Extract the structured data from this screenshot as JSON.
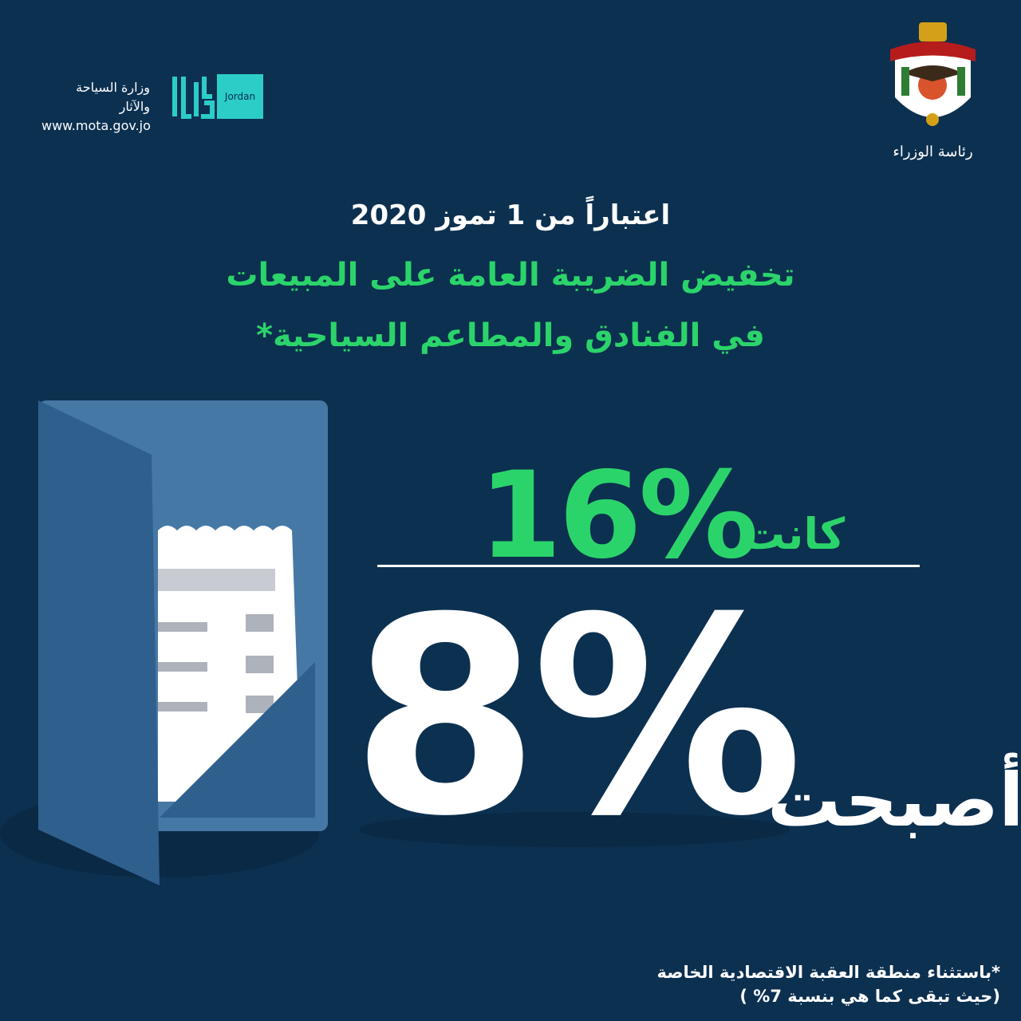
{
  "header": {
    "ministry_name": "وزارة السياحة والآثار",
    "ministry_url": "www.mota.gov.jo",
    "brand_logo_text": "Jordan",
    "crest_label": "رئاسة الوزراء"
  },
  "headline": {
    "date": "اعتباراً من 1 تموز 2020",
    "title_line1": "تخفيض الضريبة العامة على المبيعات",
    "title_line2": "في الفنادق والمطاعم السياحية*"
  },
  "rates": {
    "previous_label": "كانت",
    "previous_value": "16%",
    "current_label": "أصبحت",
    "current_value": "8%"
  },
  "footnote": {
    "line1": "*باستثناء منطقة العقبة الاقتصادية الخاصة",
    "line2": "(حيث تبقى كما هي بنسبة 7% )"
  },
  "colors": {
    "background": "#0c3050",
    "accent_green": "#2bd46a",
    "brand_teal": "#2ccdc7",
    "folder_blue": "#4678a6"
  }
}
